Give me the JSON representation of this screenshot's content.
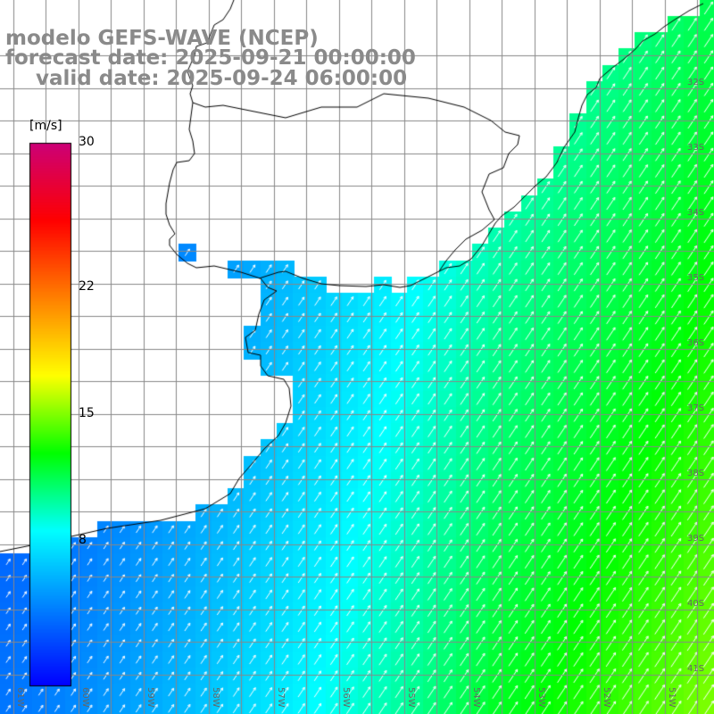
{
  "header": {
    "model": "modelo GEFS-WAVE (NCEP)",
    "forecast": "forecast date: 2025-09-21 00:00:00",
    "valid": "valid date: 2025-09-24 06:00:00"
  },
  "colorbar": {
    "unit": "[m/s]",
    "ticks": [
      {
        "label": "30",
        "value": 30
      },
      {
        "label": "22",
        "value": 22
      },
      {
        "label": "15",
        "value": 15
      },
      {
        "label": "8",
        "value": 8
      }
    ],
    "min": 0,
    "max": 30,
    "colors": [
      "#0000ff",
      "#0080ff",
      "#00ffff",
      "#00ff00",
      "#ffff00",
      "#ff8000",
      "#ff0000",
      "#cc0077"
    ]
  },
  "grid": {
    "lat_labels": [
      {
        "label": "32S",
        "lat": -32
      },
      {
        "label": "33S",
        "lat": -33
      },
      {
        "label": "34S",
        "lat": -34
      },
      {
        "label": "35S",
        "lat": -35
      },
      {
        "label": "36S",
        "lat": -36
      },
      {
        "label": "37S",
        "lat": -37
      },
      {
        "label": "38S",
        "lat": -38
      },
      {
        "label": "39S",
        "lat": -39
      },
      {
        "label": "40S",
        "lat": -40
      },
      {
        "label": "41S",
        "lat": -41
      }
    ],
    "lon_labels": [
      {
        "label": "61W",
        "lon": -61
      },
      {
        "label": "60W",
        "lon": -60
      },
      {
        "label": "59W",
        "lon": -59
      },
      {
        "label": "58W",
        "lon": -58
      },
      {
        "label": "57W",
        "lon": -57
      },
      {
        "label": "56W",
        "lon": -56
      },
      {
        "label": "55W",
        "lon": -55
      },
      {
        "label": "54W",
        "lon": -54
      },
      {
        "label": "53W",
        "lon": -53
      },
      {
        "label": "52W",
        "lon": -52
      },
      {
        "label": "51W",
        "lon": -51
      }
    ],
    "line_color": "#888888",
    "coast_color": "#000000",
    "land_color": "#ffffff"
  },
  "field": {
    "variable": "wind speed",
    "unit": "m/s",
    "lon_range": [
      -61.0,
      -50.2
    ],
    "lat_range": [
      -41.1,
      -30.3
    ],
    "speed_examples": [
      {
        "area": "near coast south-west",
        "value": 3
      },
      {
        "area": "Rio de la Plata",
        "value": 4
      },
      {
        "area": "central ocean",
        "value": 8
      },
      {
        "area": "south-east corner",
        "value": 14
      }
    ],
    "arrow_direction": "towards north-east"
  }
}
